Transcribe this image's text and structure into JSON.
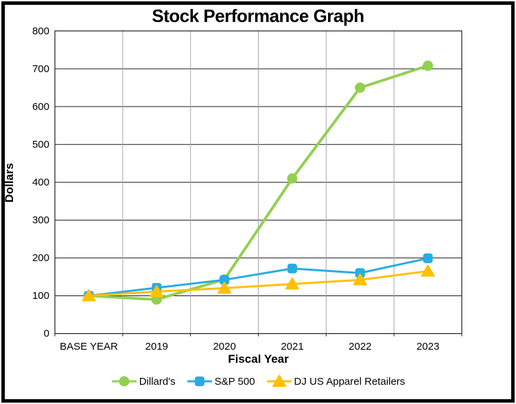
{
  "chart_data": {
    "type": "line",
    "title": "Stock Performance Graph",
    "xlabel": "Fiscal Year",
    "ylabel": "Dollars",
    "categories": [
      "BASE YEAR",
      "2019",
      "2020",
      "2021",
      "2022",
      "2023"
    ],
    "series": [
      {
        "name": "Dillard's",
        "color": "#92D050",
        "marker": "circle",
        "values": [
          100,
          90,
          143,
          410,
          650,
          708
        ]
      },
      {
        "name": "S&P 500",
        "color": "#29ABE2",
        "marker": "square",
        "values": [
          100,
          121,
          142,
          172,
          160,
          199
        ]
      },
      {
        "name": "DJ US Apparel Retailers",
        "color": "#FFC000",
        "marker": "triangle",
        "values": [
          100,
          111,
          120,
          131,
          142,
          165
        ]
      }
    ],
    "ylim": [
      0,
      800
    ],
    "ytick_step": 100,
    "grid": {
      "horizontal": true,
      "vertical": true
    },
    "legend_position": "bottom",
    "colors": {
      "h_gridline": "#1a1a1a",
      "v_gridline": "#a6a6a6",
      "plot_border": "#1a1a1a",
      "frame_border": "#000000"
    }
  }
}
